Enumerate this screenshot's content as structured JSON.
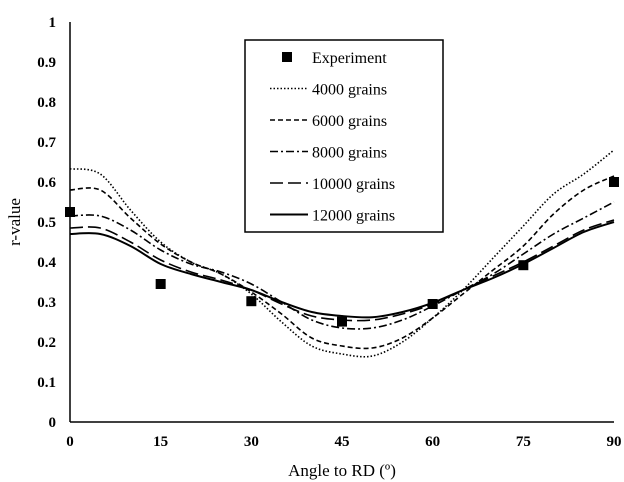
{
  "chart_data": {
    "type": "line",
    "xlabel": "Angle to RD (º)",
    "ylabel": "r-value",
    "xlim": [
      0,
      90
    ],
    "ylim": [
      0,
      1
    ],
    "xticks": [
      "0",
      "15",
      "30",
      "45",
      "60",
      "75",
      "90"
    ],
    "yticks": [
      "0",
      "0.1",
      "0.2",
      "0.3",
      "0.4",
      "0.5",
      "0.6",
      "0.7",
      "0.8",
      "0.9",
      "1"
    ],
    "grid": false,
    "legend_position": "top-center",
    "experiment": {
      "name": "Experiment",
      "x": [
        0,
        15,
        30,
        45,
        60,
        75,
        90
      ],
      "y": [
        0.525,
        0.345,
        0.302,
        0.251,
        0.295,
        0.392,
        0.6
      ]
    },
    "series": [
      {
        "name": "4000 grains",
        "style": "dotted",
        "x": [
          0,
          5,
          10,
          15,
          20,
          25,
          30,
          35,
          40,
          45,
          50,
          55,
          60,
          65,
          70,
          75,
          80,
          85,
          90
        ],
        "y": [
          0.633,
          0.62,
          0.53,
          0.45,
          0.4,
          0.37,
          0.32,
          0.25,
          0.19,
          0.17,
          0.165,
          0.2,
          0.26,
          0.33,
          0.41,
          0.49,
          0.57,
          0.62,
          0.68
        ]
      },
      {
        "name": "6000 grains",
        "style": "short-dash",
        "x": [
          0,
          5,
          10,
          15,
          20,
          25,
          30,
          35,
          40,
          45,
          50,
          55,
          60,
          65,
          70,
          75,
          80,
          85,
          90
        ],
        "y": [
          0.58,
          0.58,
          0.51,
          0.445,
          0.4,
          0.37,
          0.325,
          0.27,
          0.21,
          0.19,
          0.185,
          0.21,
          0.26,
          0.32,
          0.38,
          0.44,
          0.52,
          0.58,
          0.615
        ]
      },
      {
        "name": "8000 grains",
        "style": "dash-dot",
        "x": [
          0,
          5,
          10,
          15,
          20,
          25,
          30,
          35,
          40,
          45,
          50,
          55,
          60,
          65,
          70,
          75,
          80,
          85,
          90
        ],
        "y": [
          0.515,
          0.515,
          0.48,
          0.43,
          0.395,
          0.375,
          0.345,
          0.3,
          0.255,
          0.235,
          0.235,
          0.255,
          0.29,
          0.33,
          0.37,
          0.42,
          0.47,
          0.51,
          0.55
        ]
      },
      {
        "name": "10000 grains",
        "style": "long-dash",
        "x": [
          0,
          5,
          10,
          15,
          20,
          25,
          30,
          35,
          40,
          45,
          50,
          55,
          60,
          65,
          70,
          75,
          80,
          85,
          90
        ],
        "y": [
          0.485,
          0.485,
          0.45,
          0.405,
          0.375,
          0.355,
          0.33,
          0.295,
          0.265,
          0.255,
          0.255,
          0.27,
          0.295,
          0.33,
          0.365,
          0.4,
          0.44,
          0.48,
          0.505
        ]
      },
      {
        "name": "12000 grains",
        "style": "solid",
        "x": [
          0,
          5,
          10,
          15,
          20,
          25,
          30,
          35,
          40,
          45,
          50,
          55,
          60,
          65,
          70,
          75,
          80,
          85,
          90
        ],
        "y": [
          0.47,
          0.47,
          0.44,
          0.395,
          0.37,
          0.35,
          0.33,
          0.3,
          0.275,
          0.265,
          0.262,
          0.275,
          0.298,
          0.33,
          0.36,
          0.395,
          0.435,
          0.475,
          0.5
        ]
      }
    ]
  }
}
